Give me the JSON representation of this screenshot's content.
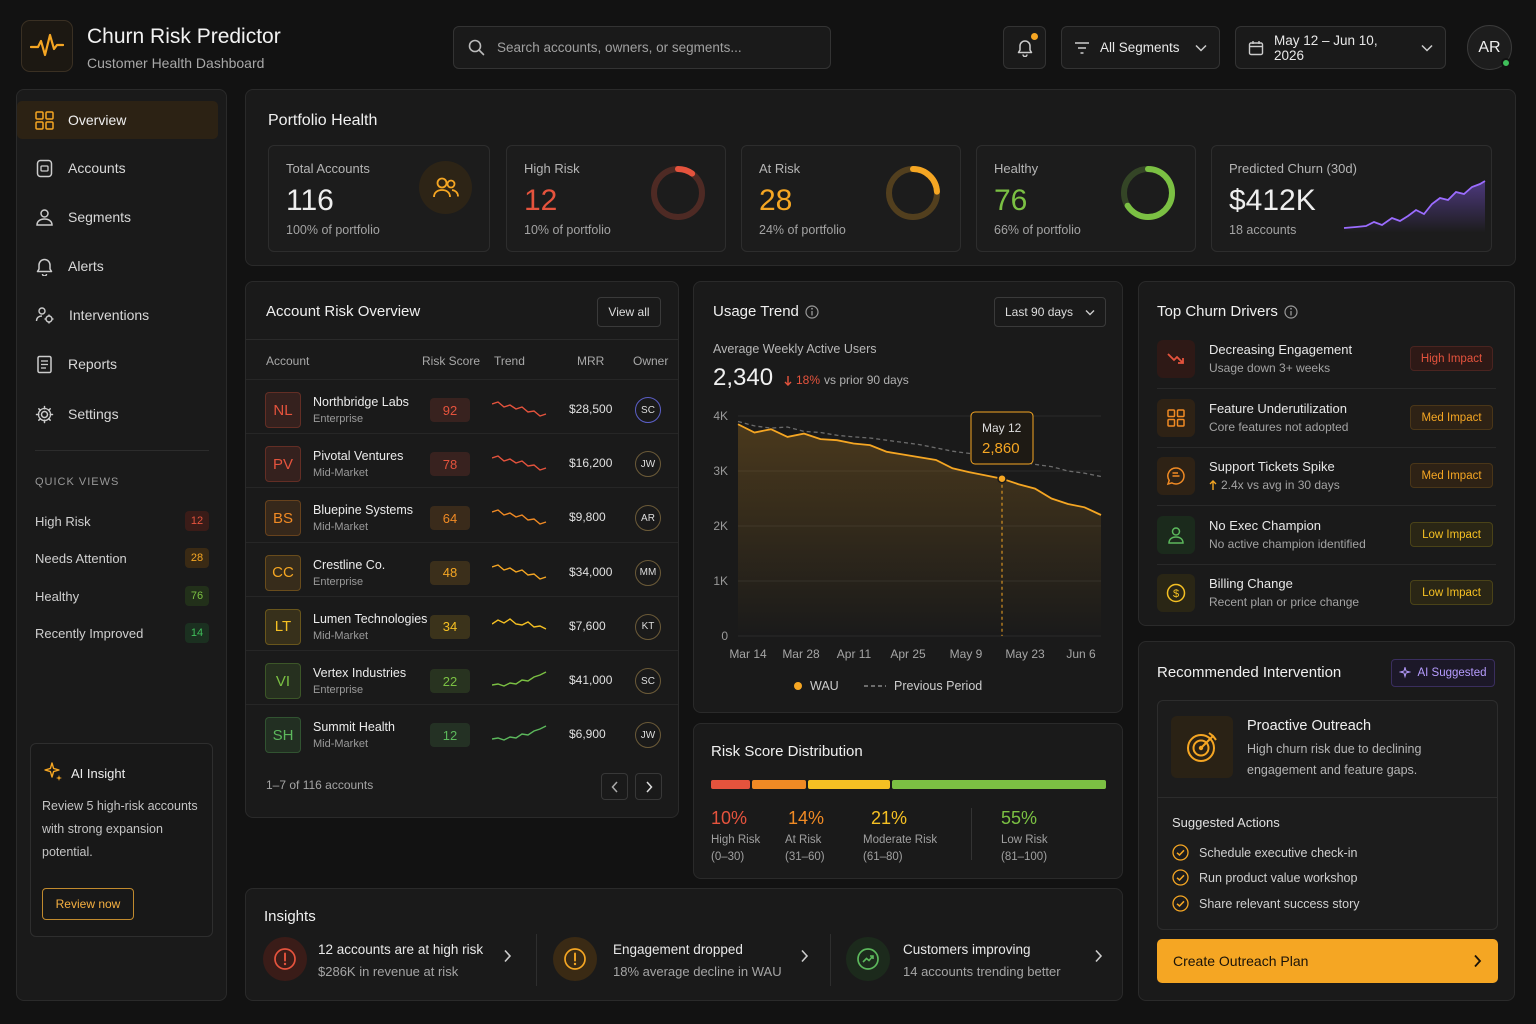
{
  "app": {
    "title": "Churn Risk Predictor",
    "subtitle": "Customer Health Dashboard"
  },
  "header": {
    "search_placeholder": "Search accounts, owners, or segments...",
    "segment_filter": "All Segments",
    "date_range": "May 12 – Jun 10, 2026",
    "user_initials": "AR",
    "notification_indicator": true
  },
  "sidebar": {
    "items": [
      {
        "label": "Overview",
        "icon": "grid-icon",
        "active": true
      },
      {
        "label": "Accounts",
        "icon": "building-icon"
      },
      {
        "label": "Segments",
        "icon": "users-icon"
      },
      {
        "label": "Alerts",
        "icon": "bell-icon"
      },
      {
        "label": "Interventions",
        "icon": "people-gear-icon"
      },
      {
        "label": "Reports",
        "icon": "document-icon"
      },
      {
        "label": "Settings",
        "icon": "gear-icon"
      }
    ],
    "quick_views_title": "QUICK VIEWS",
    "quick_views": [
      {
        "label": "High Risk",
        "count": "12",
        "color": "#e5533d"
      },
      {
        "label": "Needs Attention",
        "count": "28",
        "color": "#f5a623"
      },
      {
        "label": "Healthy",
        "count": "76",
        "color": "#7bc043"
      },
      {
        "label": "Recently Improved",
        "count": "14",
        "color": "#3fbf5a"
      }
    ],
    "ai_insight": {
      "title": "AI Insight",
      "text": "Review 5 high-risk accounts with strong expansion potential.",
      "button": "Review now"
    }
  },
  "portfolio": {
    "title": "Portfolio Health",
    "kpis": [
      {
        "label": "Total Accounts",
        "value": "116",
        "sub": "100% of portfolio",
        "color": "#e8e8e8",
        "icon": "users-icon"
      },
      {
        "label": "High Risk",
        "value": "12",
        "sub": "10% of portfolio",
        "color": "#e5533d",
        "fraction": 0.1
      },
      {
        "label": "At Risk",
        "value": "28",
        "sub": "24% of portfolio",
        "color": "#f5a623",
        "fraction": 0.24
      },
      {
        "label": "Healthy",
        "value": "76",
        "sub": "66% of portfolio",
        "color": "#7bc043",
        "fraction": 0.66
      },
      {
        "label": "Predicted Churn (30d)",
        "value": "$412K",
        "sub": "18 accounts",
        "color": "#e8e8e8"
      }
    ]
  },
  "risk_overview": {
    "title": "Account Risk Overview",
    "view_all": "View all",
    "columns": [
      "Account",
      "Risk Score",
      "Trend",
      "MRR",
      "Owner"
    ],
    "rows": [
      {
        "initials": "NL",
        "name": "Northbridge Labs",
        "segment": "Enterprise",
        "score": "92",
        "mrr": "$28,500",
        "owner": "SC",
        "color": "#e5533d",
        "trend": "down"
      },
      {
        "initials": "PV",
        "name": "Pivotal Ventures",
        "segment": "Mid-Market",
        "score": "78",
        "mrr": "$16,200",
        "owner": "JW",
        "color": "#e5533d",
        "trend": "down"
      },
      {
        "initials": "BS",
        "name": "Bluepine Systems",
        "segment": "Mid-Market",
        "score": "64",
        "mrr": "$9,800",
        "owner": "AR",
        "color": "#f08a24",
        "trend": "down"
      },
      {
        "initials": "CC",
        "name": "Crestline Co.",
        "segment": "Enterprise",
        "score": "48",
        "mrr": "$34,000",
        "owner": "MM",
        "color": "#f5a623",
        "trend": "down"
      },
      {
        "initials": "LT",
        "name": "Lumen Technologies",
        "segment": "Mid-Market",
        "score": "34",
        "mrr": "$7,600",
        "owner": "KT",
        "color": "#f5c023",
        "trend": "flat"
      },
      {
        "initials": "VI",
        "name": "Vertex Industries",
        "segment": "Enterprise",
        "score": "22",
        "mrr": "$41,000",
        "owner": "SC",
        "color": "#7bc043",
        "trend": "up"
      },
      {
        "initials": "SH",
        "name": "Summit Health",
        "segment": "Mid-Market",
        "score": "12",
        "mrr": "$6,900",
        "owner": "JW",
        "color": "#5cb85c",
        "trend": "up"
      }
    ],
    "pager": "1–7 of 116 accounts"
  },
  "usage": {
    "title": "Usage Trend",
    "range": "Last 90 days",
    "metric_label": "Average Weekly Active Users",
    "metric_value": "2,340",
    "delta": "18%",
    "delta_text": "vs prior 90 days",
    "tooltip_date": "May 12",
    "tooltip_value": "2,860",
    "legend_current": "WAU",
    "legend_previous": "Previous Period"
  },
  "chart_data": {
    "type": "line",
    "x_ticks": [
      "Mar 14",
      "Mar 28",
      "Apr 11",
      "Apr 25",
      "May 9",
      "May 23",
      "Jun 6"
    ],
    "y_ticks": [
      "0",
      "1K",
      "2K",
      "3K",
      "4K"
    ],
    "ylim": [
      0,
      4000
    ],
    "series": [
      {
        "name": "WAU",
        "color": "#f5a623",
        "values": [
          3850,
          3700,
          3760,
          3620,
          3680,
          3580,
          3560,
          3500,
          3470,
          3350,
          3300,
          3250,
          3200,
          3050,
          2980,
          2920,
          2860,
          2760,
          2680,
          2500,
          2400,
          2340,
          2200
        ]
      },
      {
        "name": "Previous Period",
        "color": "#6b6b6b",
        "dashed": true,
        "values": [
          3900,
          3820,
          3780,
          3800,
          3720,
          3700,
          3650,
          3620,
          3600,
          3560,
          3520,
          3480,
          3420,
          3360,
          3320,
          3280,
          3220,
          3180,
          3120,
          3080,
          3000,
          2960,
          2900
        ]
      }
    ],
    "highlight_index": 16
  },
  "distribution": {
    "title": "Risk Score Distribution",
    "buckets": [
      {
        "pct": "10%",
        "label": "High Risk",
        "range": "(0–30)",
        "color": "#e5533d",
        "fraction": 0.1
      },
      {
        "pct": "14%",
        "label": "At Risk",
        "range": "(31–60)",
        "color": "#f08a24",
        "fraction": 0.14
      },
      {
        "pct": "21%",
        "label": "Moderate Risk",
        "range": "(61–80)",
        "color": "#f5c023",
        "fraction": 0.21
      },
      {
        "pct": "55%",
        "label": "Low Risk",
        "range": "(81–100)",
        "color": "#7bc043",
        "fraction": 0.55
      }
    ]
  },
  "insights": {
    "title": "Insights",
    "items": [
      {
        "title": "12 accounts are at high risk",
        "sub": "$286K in revenue at risk",
        "color": "#e5533d",
        "icon": "alert-circle-icon"
      },
      {
        "title": "Engagement dropped",
        "sub": "18% average decline in WAU",
        "color": "#f5a623",
        "icon": "alert-circle-icon"
      },
      {
        "title": "Customers improving",
        "sub": "14 accounts trending better",
        "color": "#5cb85c",
        "icon": "trend-up-icon"
      }
    ]
  },
  "drivers": {
    "title": "Top Churn Drivers",
    "items": [
      {
        "title": "Decreasing Engagement",
        "sub": "Usage down 3+ weeks",
        "impact": "High Impact",
        "color": "#e5533d",
        "icon": "trend-down-icon"
      },
      {
        "title": "Feature Underutilization",
        "sub": "Core features not adopted",
        "impact": "Med Impact",
        "color": "#f08a24",
        "icon": "grid-icon"
      },
      {
        "title": "Support Tickets Spike",
        "sub": "2.4x vs avg in 30 days",
        "impact": "Med Impact",
        "color": "#f08a24",
        "icon": "chat-icon"
      },
      {
        "title": "No Exec Champion",
        "sub": "No active champion identified",
        "impact": "Low Impact",
        "color": "#5cb85c",
        "badge_color": "#f5c023",
        "icon": "user-icon"
      },
      {
        "title": "Billing Change",
        "sub": "Recent plan or price change",
        "impact": "Low Impact",
        "color": "#f5c023",
        "badge_color": "#f5c023",
        "icon": "dollar-icon"
      }
    ]
  },
  "recommendation": {
    "title": "Recommended Intervention",
    "badge": "AI Suggested",
    "headline": "Proactive Outreach",
    "desc": "High churn risk due to declining engagement and feature gaps.",
    "actions_title": "Suggested Actions",
    "actions": [
      "Schedule executive check-in",
      "Run product value workshop",
      "Share relevant success story"
    ],
    "cta": "Create Outreach Plan"
  }
}
